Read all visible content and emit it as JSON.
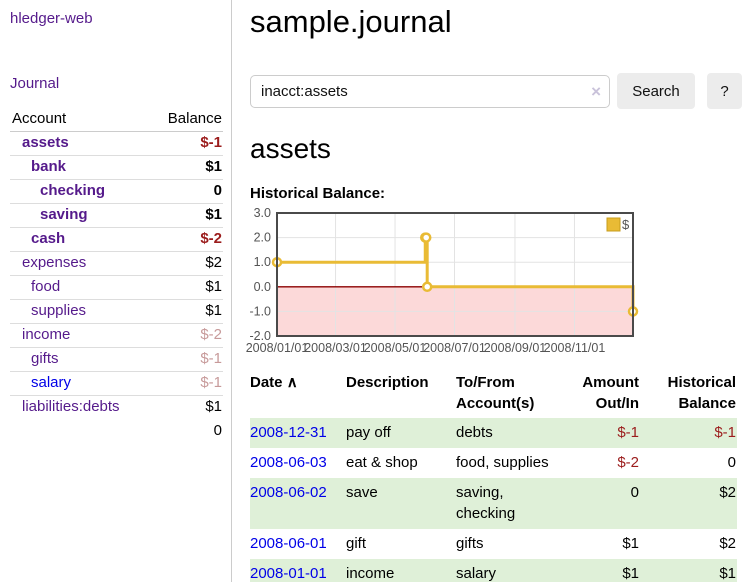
{
  "app": {
    "title": "hledger-web",
    "nav_journal": "Journal"
  },
  "sidebar": {
    "accounts_header": {
      "account": "Account",
      "balance": "Balance"
    },
    "accounts": [
      {
        "name": "assets",
        "indent": 1,
        "bold": true,
        "amount": "$-1",
        "amount_style": "neg-strong",
        "link": "visited"
      },
      {
        "name": "bank",
        "indent": 2,
        "bold": true,
        "amount": "$1",
        "amount_style": "plain",
        "link": "visited"
      },
      {
        "name": "checking",
        "indent": 3,
        "bold": true,
        "amount": "0",
        "amount_style": "plain",
        "link": "visited"
      },
      {
        "name": "saving",
        "indent": 3,
        "bold": true,
        "amount": "$1",
        "amount_style": "plain",
        "link": "visited"
      },
      {
        "name": "cash",
        "indent": 2,
        "bold": true,
        "amount": "$-2",
        "amount_style": "neg-strong",
        "link": "visited"
      },
      {
        "name": "expenses",
        "indent": 1,
        "bold": false,
        "amount": "$2",
        "amount_style": "plain",
        "link": "visited"
      },
      {
        "name": "food",
        "indent": 2,
        "bold": false,
        "amount": "$1",
        "amount_style": "plain",
        "link": "visited"
      },
      {
        "name": "supplies",
        "indent": 2,
        "bold": false,
        "amount": "$1",
        "amount_style": "plain",
        "link": "visited"
      },
      {
        "name": "income",
        "indent": 1,
        "bold": false,
        "amount": "$-2",
        "amount_style": "neg-dim",
        "link": "visited"
      },
      {
        "name": "gifts",
        "indent": 2,
        "bold": false,
        "amount": "$-1",
        "amount_style": "neg-dim",
        "link": "visited"
      },
      {
        "name": "salary",
        "indent": 2,
        "bold": false,
        "amount": "$-1",
        "amount_style": "neg-dim",
        "link": "unvisited"
      },
      {
        "name": "liabilities:debts",
        "indent": 1,
        "bold": false,
        "amount": "$1",
        "amount_style": "plain",
        "link": "visited"
      }
    ],
    "total": "0"
  },
  "header": {
    "title": "sample.journal"
  },
  "search": {
    "value": "inacct:assets",
    "button": "Search",
    "help_button": "?",
    "clear_icon": "×"
  },
  "account_page": {
    "heading": "assets",
    "chart_label": "Historical Balance:"
  },
  "chart_data": {
    "type": "line",
    "step": true,
    "title": "Historical Balance:",
    "series": [
      {
        "name": "$",
        "color": "#e9bb35",
        "points": [
          [
            "2008-01-01",
            1
          ],
          [
            "2008-06-01",
            2
          ],
          [
            "2008-06-02",
            2
          ],
          [
            "2008-06-03",
            0
          ],
          [
            "2008-12-31",
            -1
          ]
        ]
      }
    ],
    "xlim": [
      "2008-01-01",
      "2008-12-31"
    ],
    "ylim": [
      -2.0,
      3.0
    ],
    "yticks": [
      "3.0",
      "2.0",
      "1.0",
      "0.0",
      "-1.0",
      "-2.0"
    ],
    "xticks": [
      "2008/01/01",
      "2008/03/01",
      "2008/05/01",
      "2008/07/01",
      "2008/09/01",
      "2008/11/01"
    ],
    "grid": true,
    "legend_position": "top-right",
    "negative_region_fill": "#fcd9d9",
    "zero_line_color": "#8b0000"
  },
  "register": {
    "headers": {
      "date": "Date",
      "sort_arrow": "∧",
      "description": "Description",
      "accounts_l1": "To/From",
      "accounts_l2": "Account(s)",
      "amount_l1": "Amount",
      "amount_l2": "Out/In",
      "balance_l1": "Historical",
      "balance_l2": "Balance"
    },
    "rows": [
      {
        "date": "2008-12-31",
        "description": "pay off",
        "accounts": "debts",
        "amount": "$-1",
        "amount_neg": true,
        "balance": "$-1",
        "balance_neg": true
      },
      {
        "date": "2008-06-03",
        "description": "eat & shop",
        "accounts": "food, supplies",
        "amount": "$-2",
        "amount_neg": true,
        "balance": "0",
        "balance_neg": false
      },
      {
        "date": "2008-06-02",
        "description": "save",
        "accounts": "saving, checking",
        "amount": "0",
        "amount_neg": false,
        "balance": "$2",
        "balance_neg": false
      },
      {
        "date": "2008-06-01",
        "description": "gift",
        "accounts": "gifts",
        "amount": "$1",
        "amount_neg": false,
        "balance": "$2",
        "balance_neg": false
      },
      {
        "date": "2008-01-01",
        "description": "income",
        "accounts": "salary",
        "amount": "$1",
        "amount_neg": false,
        "balance": "$1",
        "balance_neg": false
      }
    ]
  }
}
